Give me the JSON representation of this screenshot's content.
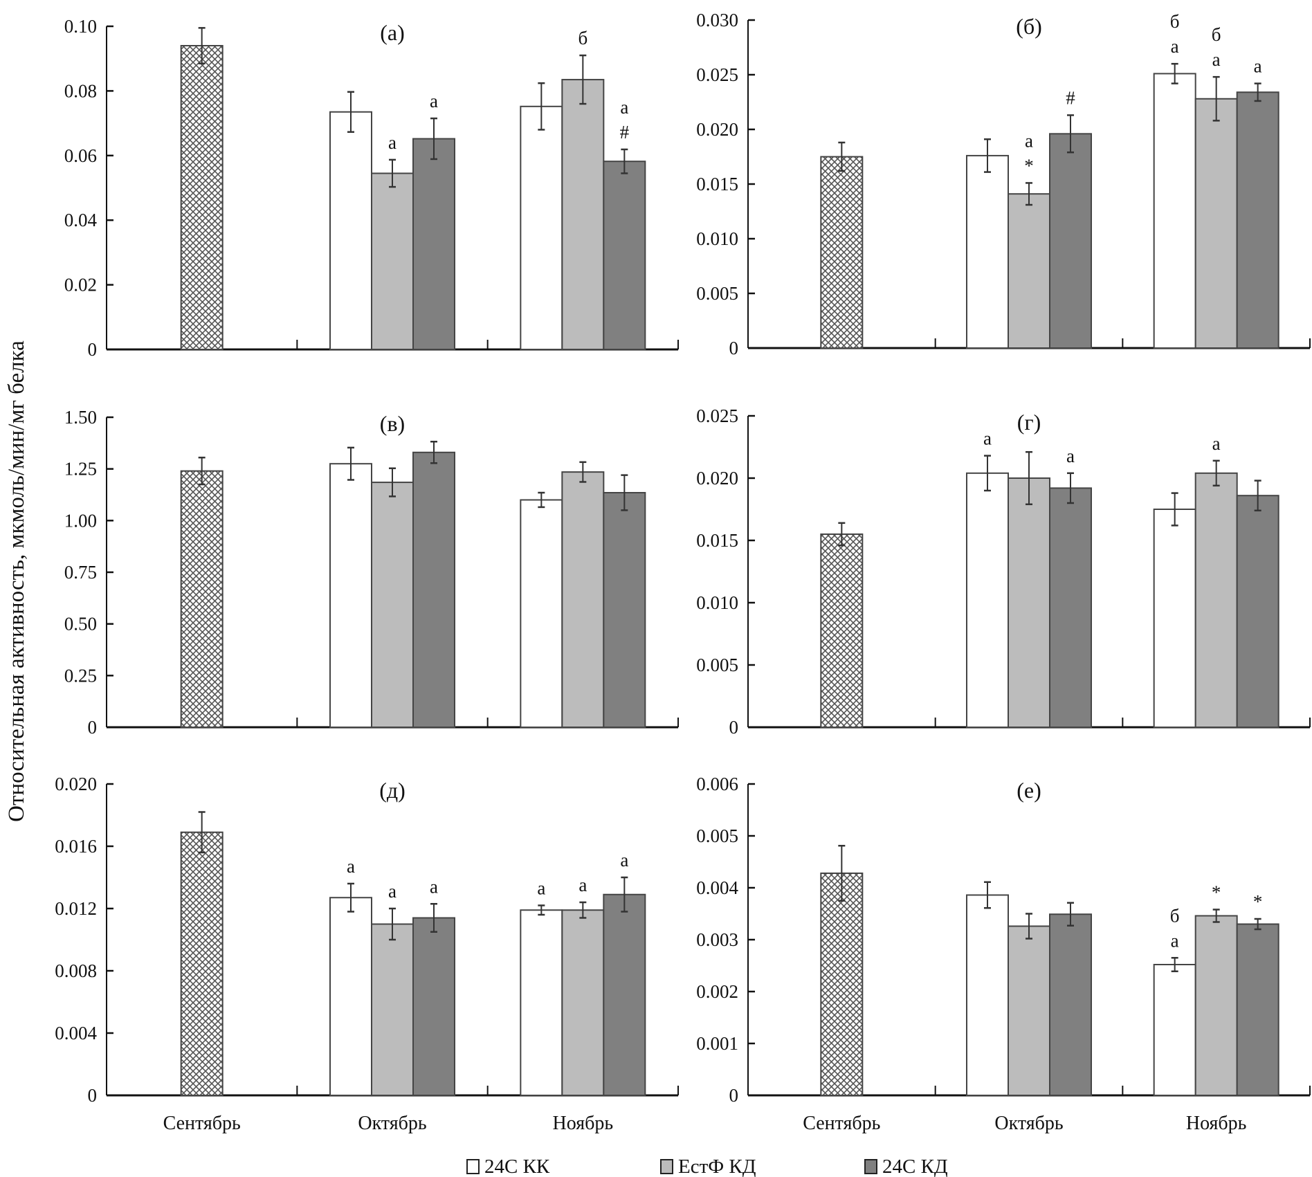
{
  "chart_data": {
    "type": "bar",
    "ylabel": "Относительная активность, мкмоль/мин/мг белка",
    "categories": [
      "Сентябрь",
      "Октябрь",
      "Ноябрь"
    ],
    "legend": {
      "position": "bottom-center",
      "items": [
        {
          "name": "24С КК",
          "color": "#ffffff"
        },
        {
          "name": "ЕстФ КД",
          "color": "#bcbcbc"
        },
        {
          "name": "24С КД",
          "color": "#808080"
        }
      ]
    },
    "baseline_style": {
      "name": "Сентябрь (baseline)",
      "pattern": "crosshatch"
    },
    "panels": [
      {
        "id": "a",
        "title": "(а)",
        "ylim": [
          0,
          0.1
        ],
        "yticks": [
          "0",
          "0.02",
          "0.04",
          "0.06",
          "0.08",
          "0.10"
        ],
        "ytick_values": [
          0,
          0.02,
          0.04,
          0.06,
          0.08,
          0.1
        ],
        "baseline": {
          "value": 0.094,
          "err": 0.0055
        },
        "series": [
          {
            "name": "24С КК",
            "values": [
              null,
              0.0735,
              0.0752
            ],
            "errors": [
              null,
              0.0062,
              0.0072
            ],
            "annotations": [
              null,
              [],
              []
            ]
          },
          {
            "name": "ЕстФ КД",
            "values": [
              null,
              0.0545,
              0.0835
            ],
            "errors": [
              null,
              0.0042,
              0.0075
            ],
            "annotations": [
              null,
              [
                "а"
              ],
              [
                "б"
              ]
            ]
          },
          {
            "name": "24С КД",
            "values": [
              null,
              0.0652,
              0.0582
            ],
            "errors": [
              null,
              0.0063,
              0.0037
            ],
            "annotations": [
              null,
              [
                "а"
              ],
              [
                "#",
                "а"
              ]
            ]
          }
        ]
      },
      {
        "id": "b",
        "title": "(б)",
        "ylim": [
          0,
          0.03
        ],
        "yticks": [
          "0",
          "0.005",
          "0.010",
          "0.015",
          "0.020",
          "0.025",
          "0.030"
        ],
        "ytick_values": [
          0,
          0.005,
          0.01,
          0.015,
          0.02,
          0.025,
          0.03
        ],
        "baseline": {
          "value": 0.0175,
          "err": 0.0013
        },
        "series": [
          {
            "name": "24С КК",
            "values": [
              null,
              0.0176,
              0.0251
            ],
            "errors": [
              null,
              0.0015,
              0.0009
            ],
            "annotations": [
              null,
              [],
              [
                "а",
                "б"
              ]
            ]
          },
          {
            "name": "ЕстФ КД",
            "values": [
              null,
              0.0141,
              0.0228
            ],
            "errors": [
              null,
              0.001,
              0.002
            ],
            "annotations": [
              null,
              [
                "*",
                "а"
              ],
              [
                "а",
                "б"
              ]
            ]
          },
          {
            "name": "24С КД",
            "values": [
              null,
              0.0196,
              0.0234
            ],
            "errors": [
              null,
              0.0017,
              0.0008
            ],
            "annotations": [
              null,
              [
                "#"
              ],
              [
                "а"
              ]
            ]
          }
        ]
      },
      {
        "id": "v",
        "title": "(в)",
        "ylim": [
          0,
          1.5
        ],
        "yticks": [
          "0",
          "0.25",
          "0.50",
          "0.75",
          "1.00",
          "1.25",
          "1.50"
        ],
        "ytick_values": [
          0,
          0.25,
          0.5,
          0.75,
          1.0,
          1.25,
          1.5
        ],
        "baseline": {
          "value": 1.24,
          "err": 0.065
        },
        "series": [
          {
            "name": "24С КК",
            "values": [
              null,
              1.275,
              1.1
            ],
            "errors": [
              null,
              0.078,
              0.035
            ],
            "annotations": [
              null,
              [],
              []
            ]
          },
          {
            "name": "ЕстФ КД",
            "values": [
              null,
              1.185,
              1.235
            ],
            "errors": [
              null,
              0.068,
              0.048
            ],
            "annotations": [
              null,
              [],
              []
            ]
          },
          {
            "name": "24С КД",
            "values": [
              null,
              1.33,
              1.135
            ],
            "errors": [
              null,
              0.052,
              0.085
            ],
            "annotations": [
              null,
              [],
              []
            ]
          }
        ]
      },
      {
        "id": "g",
        "title": "(г)",
        "ylim": [
          0,
          0.025
        ],
        "yticks": [
          "0",
          "0.005",
          "0.010",
          "0.015",
          "0.020",
          "0.025"
        ],
        "ytick_values": [
          0,
          0.005,
          0.01,
          0.015,
          0.02,
          0.025
        ],
        "baseline": {
          "value": 0.0155,
          "err": 0.0009
        },
        "series": [
          {
            "name": "24С КК",
            "values": [
              null,
              0.0204,
              0.0175
            ],
            "errors": [
              null,
              0.0014,
              0.0013
            ],
            "annotations": [
              null,
              [
                "а"
              ],
              []
            ]
          },
          {
            "name": "ЕстФ КД",
            "values": [
              null,
              0.02,
              0.0204
            ],
            "errors": [
              null,
              0.0021,
              0.001
            ],
            "annotations": [
              null,
              [],
              [
                "а"
              ]
            ]
          },
          {
            "name": "24С КД",
            "values": [
              null,
              0.0192,
              0.0186
            ],
            "errors": [
              null,
              0.0012,
              0.0012
            ],
            "annotations": [
              null,
              [
                "а"
              ],
              []
            ]
          }
        ]
      },
      {
        "id": "d",
        "title": "(д)",
        "ylim": [
          0,
          0.02
        ],
        "yticks": [
          "0",
          "0.004",
          "0.008",
          "0.012",
          "0.016",
          "0.020"
        ],
        "ytick_values": [
          0,
          0.004,
          0.008,
          0.012,
          0.016,
          0.02
        ],
        "baseline": {
          "value": 0.0169,
          "err": 0.0013
        },
        "series": [
          {
            "name": "24С КК",
            "values": [
              null,
              0.0127,
              0.0119
            ],
            "errors": [
              null,
              0.0009,
              0.0003
            ],
            "annotations": [
              null,
              [
                "а"
              ],
              [
                "а"
              ]
            ]
          },
          {
            "name": "ЕстФ КД",
            "values": [
              null,
              0.011,
              0.0119
            ],
            "errors": [
              null,
              0.001,
              0.0005
            ],
            "annotations": [
              null,
              [
                "а"
              ],
              [
                "а"
              ]
            ]
          },
          {
            "name": "24С КД",
            "values": [
              null,
              0.0114,
              0.0129
            ],
            "errors": [
              null,
              0.0009,
              0.0011
            ],
            "annotations": [
              null,
              [
                "а"
              ],
              [
                "а"
              ]
            ]
          }
        ]
      },
      {
        "id": "e",
        "title": "(е)",
        "ylim": [
          0,
          0.006
        ],
        "yticks": [
          "0",
          "0.001",
          "0.002",
          "0.003",
          "0.004",
          "0.005",
          "0.006"
        ],
        "ytick_values": [
          0,
          0.001,
          0.002,
          0.003,
          0.004,
          0.005,
          0.006
        ],
        "baseline": {
          "value": 0.00428,
          "err": 0.00053
        },
        "series": [
          {
            "name": "24С КК",
            "values": [
              null,
              0.00386,
              0.00252
            ],
            "errors": [
              null,
              0.00025,
              0.00013
            ],
            "annotations": [
              null,
              [],
              [
                "а",
                "б"
              ]
            ]
          },
          {
            "name": "ЕстФ КД",
            "values": [
              null,
              0.00326,
              0.00346
            ],
            "errors": [
              null,
              0.00024,
              0.00012
            ],
            "annotations": [
              null,
              [],
              [
                "*"
              ]
            ]
          },
          {
            "name": "24С КД",
            "values": [
              null,
              0.00349,
              0.0033
            ],
            "errors": [
              null,
              0.00022,
              0.0001
            ],
            "annotations": [
              null,
              [],
              [
                "*"
              ]
            ]
          }
        ]
      }
    ]
  }
}
